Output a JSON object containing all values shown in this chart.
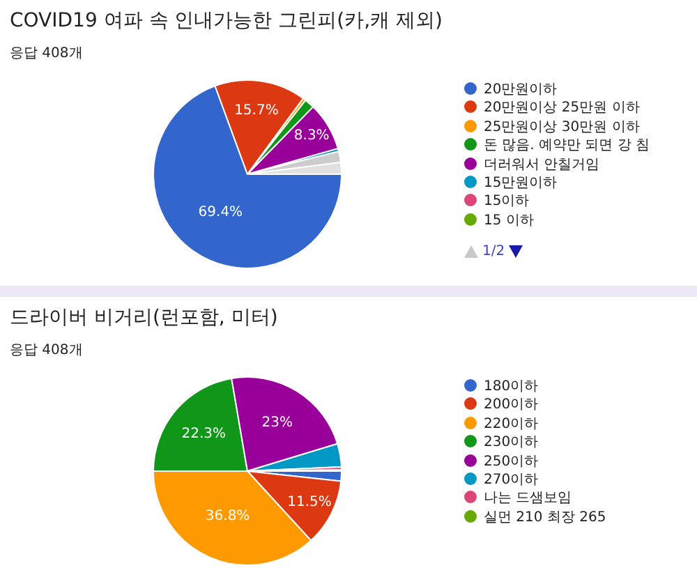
{
  "chart_data": [
    {
      "type": "pie",
      "title": "COVID19 여파 속 인내가능한 그린피(카,캐 제외)",
      "subtitle": "응답 408개",
      "legend": "right",
      "annotations": [
        "1/2"
      ],
      "categories": [
        "20만원이하",
        "20만원이상 25만원 이하",
        "25만원이상 30만원 이하",
        "돈 많음. 예약만 되면 강 침",
        "더러워서 안칠거임",
        "15만원이하",
        "15이하",
        "15 이하",
        null,
        null
      ],
      "values": [
        69.4,
        15.7,
        0.5,
        1.7,
        8.3,
        0.5,
        null,
        null,
        1.9,
        2.0
      ],
      "colors": [
        "#3366cc",
        "#dc3912",
        "#ff9900",
        "#109618",
        "#990099",
        "#0099c6",
        "#dd4477",
        "#66aa00",
        "#cccccc",
        "#e0e0e0"
      ],
      "value_labels": [
        "69.4%",
        "15.7%",
        null,
        null,
        "8.3%",
        null,
        null,
        null,
        null,
        null
      ]
    },
    {
      "type": "pie",
      "title": "드라이버 비거리(런포함, 미터)",
      "subtitle": "응답 408개",
      "legend": "right",
      "categories": [
        "180이하",
        "200이하",
        "220이하",
        "230이하",
        "250이하",
        "270이하",
        "나는 드샘보임",
        "실먼 210 최장 265"
      ],
      "values": [
        1.7,
        11.5,
        36.8,
        22.3,
        23,
        4.0,
        0.5,
        0.2
      ],
      "colors": [
        "#3366cc",
        "#dc3912",
        "#ff9900",
        "#109618",
        "#990099",
        "#0099c6",
        "#dd4477",
        "#66aa00"
      ],
      "value_labels": [
        null,
        "11.5%",
        "36.8%",
        "22.3%",
        "23%",
        null,
        null,
        null
      ]
    }
  ]
}
